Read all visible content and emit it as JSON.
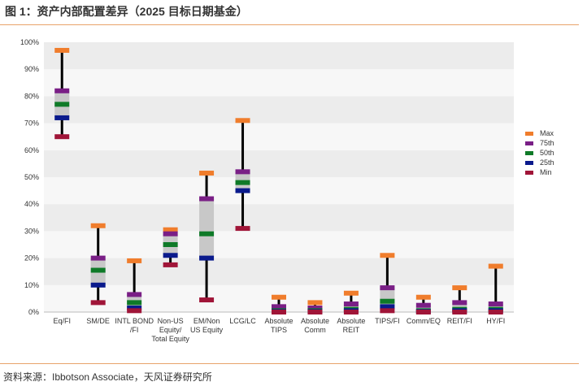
{
  "title": "图 1：资产内部配置差异（2025 目标日期基金）",
  "source": "资料来源：Ibbotson Associate，天风证券研究所",
  "colors": {
    "max": "#f07d2c",
    "p75": "#7a1f86",
    "p50": "#0f7a28",
    "p25": "#0a1a8c",
    "min": "#a01538",
    "box": "#c8c8c8",
    "whisker": "#000000",
    "band_light": "#f7f7f7",
    "band_dark": "#ececec"
  },
  "chart_data": {
    "type": "box",
    "ylim": [
      0,
      100
    ],
    "yticks": [
      "0%",
      "10%",
      "20%",
      "30%",
      "40%",
      "50%",
      "60%",
      "70%",
      "80%",
      "90%",
      "100%"
    ],
    "legend": [
      "Max",
      "75th",
      "50th",
      "25th",
      "Min"
    ],
    "categories": [
      {
        "label": [
          "Eq/FI"
        ],
        "max": 97,
        "p75": 82,
        "p50": 77,
        "p25": 72,
        "min": 65
      },
      {
        "label": [
          "SM/DE"
        ],
        "max": 32,
        "p75": 20,
        "p50": 15.5,
        "p25": 10,
        "min": 3.5
      },
      {
        "label": [
          "INTL BOND",
          "/FI"
        ],
        "max": 19,
        "p75": 6.5,
        "p50": 3.5,
        "p25": 1.5,
        "min": 0.5
      },
      {
        "label": [
          "Non-US",
          "Equity/",
          "Total Equity"
        ],
        "max": 30.5,
        "p75": 29,
        "p50": 25,
        "p25": 21,
        "min": 17.5
      },
      {
        "label": [
          "EM/Non",
          "US Equity"
        ],
        "max": 51.5,
        "p75": 42,
        "p50": 29,
        "p25": 20,
        "min": 4.5
      },
      {
        "label": [
          "LCG/LC"
        ],
        "max": 71,
        "p75": 52,
        "p50": 48,
        "p25": 45,
        "min": 31
      },
      {
        "label": [
          "Absolute",
          "TIPS"
        ],
        "max": 5.5,
        "p75": 2,
        "p50": 0.5,
        "p25": 0.2,
        "min": 0
      },
      {
        "label": [
          "Absolute",
          "Comm"
        ],
        "max": 3.5,
        "p75": 1.5,
        "p50": 0.5,
        "p25": 0.2,
        "min": 0
      },
      {
        "label": [
          "Absolute",
          "REIT"
        ],
        "max": 7,
        "p75": 3,
        "p50": 1,
        "p25": 0.5,
        "min": 0
      },
      {
        "label": [
          "TIPS/FI"
        ],
        "max": 21,
        "p75": 9,
        "p50": 4,
        "p25": 2,
        "min": 0.5
      },
      {
        "label": [
          "Comm/EQ"
        ],
        "max": 5.5,
        "p75": 2.5,
        "p50": 0.5,
        "p25": 0.2,
        "min": 0
      },
      {
        "label": [
          "REIT/FI"
        ],
        "max": 9,
        "p75": 3.5,
        "p50": 1,
        "p25": 0.5,
        "min": 0
      },
      {
        "label": [
          "HY/FI"
        ],
        "max": 17,
        "p75": 3,
        "p50": 1,
        "p25": 0.5,
        "min": 0
      }
    ]
  }
}
